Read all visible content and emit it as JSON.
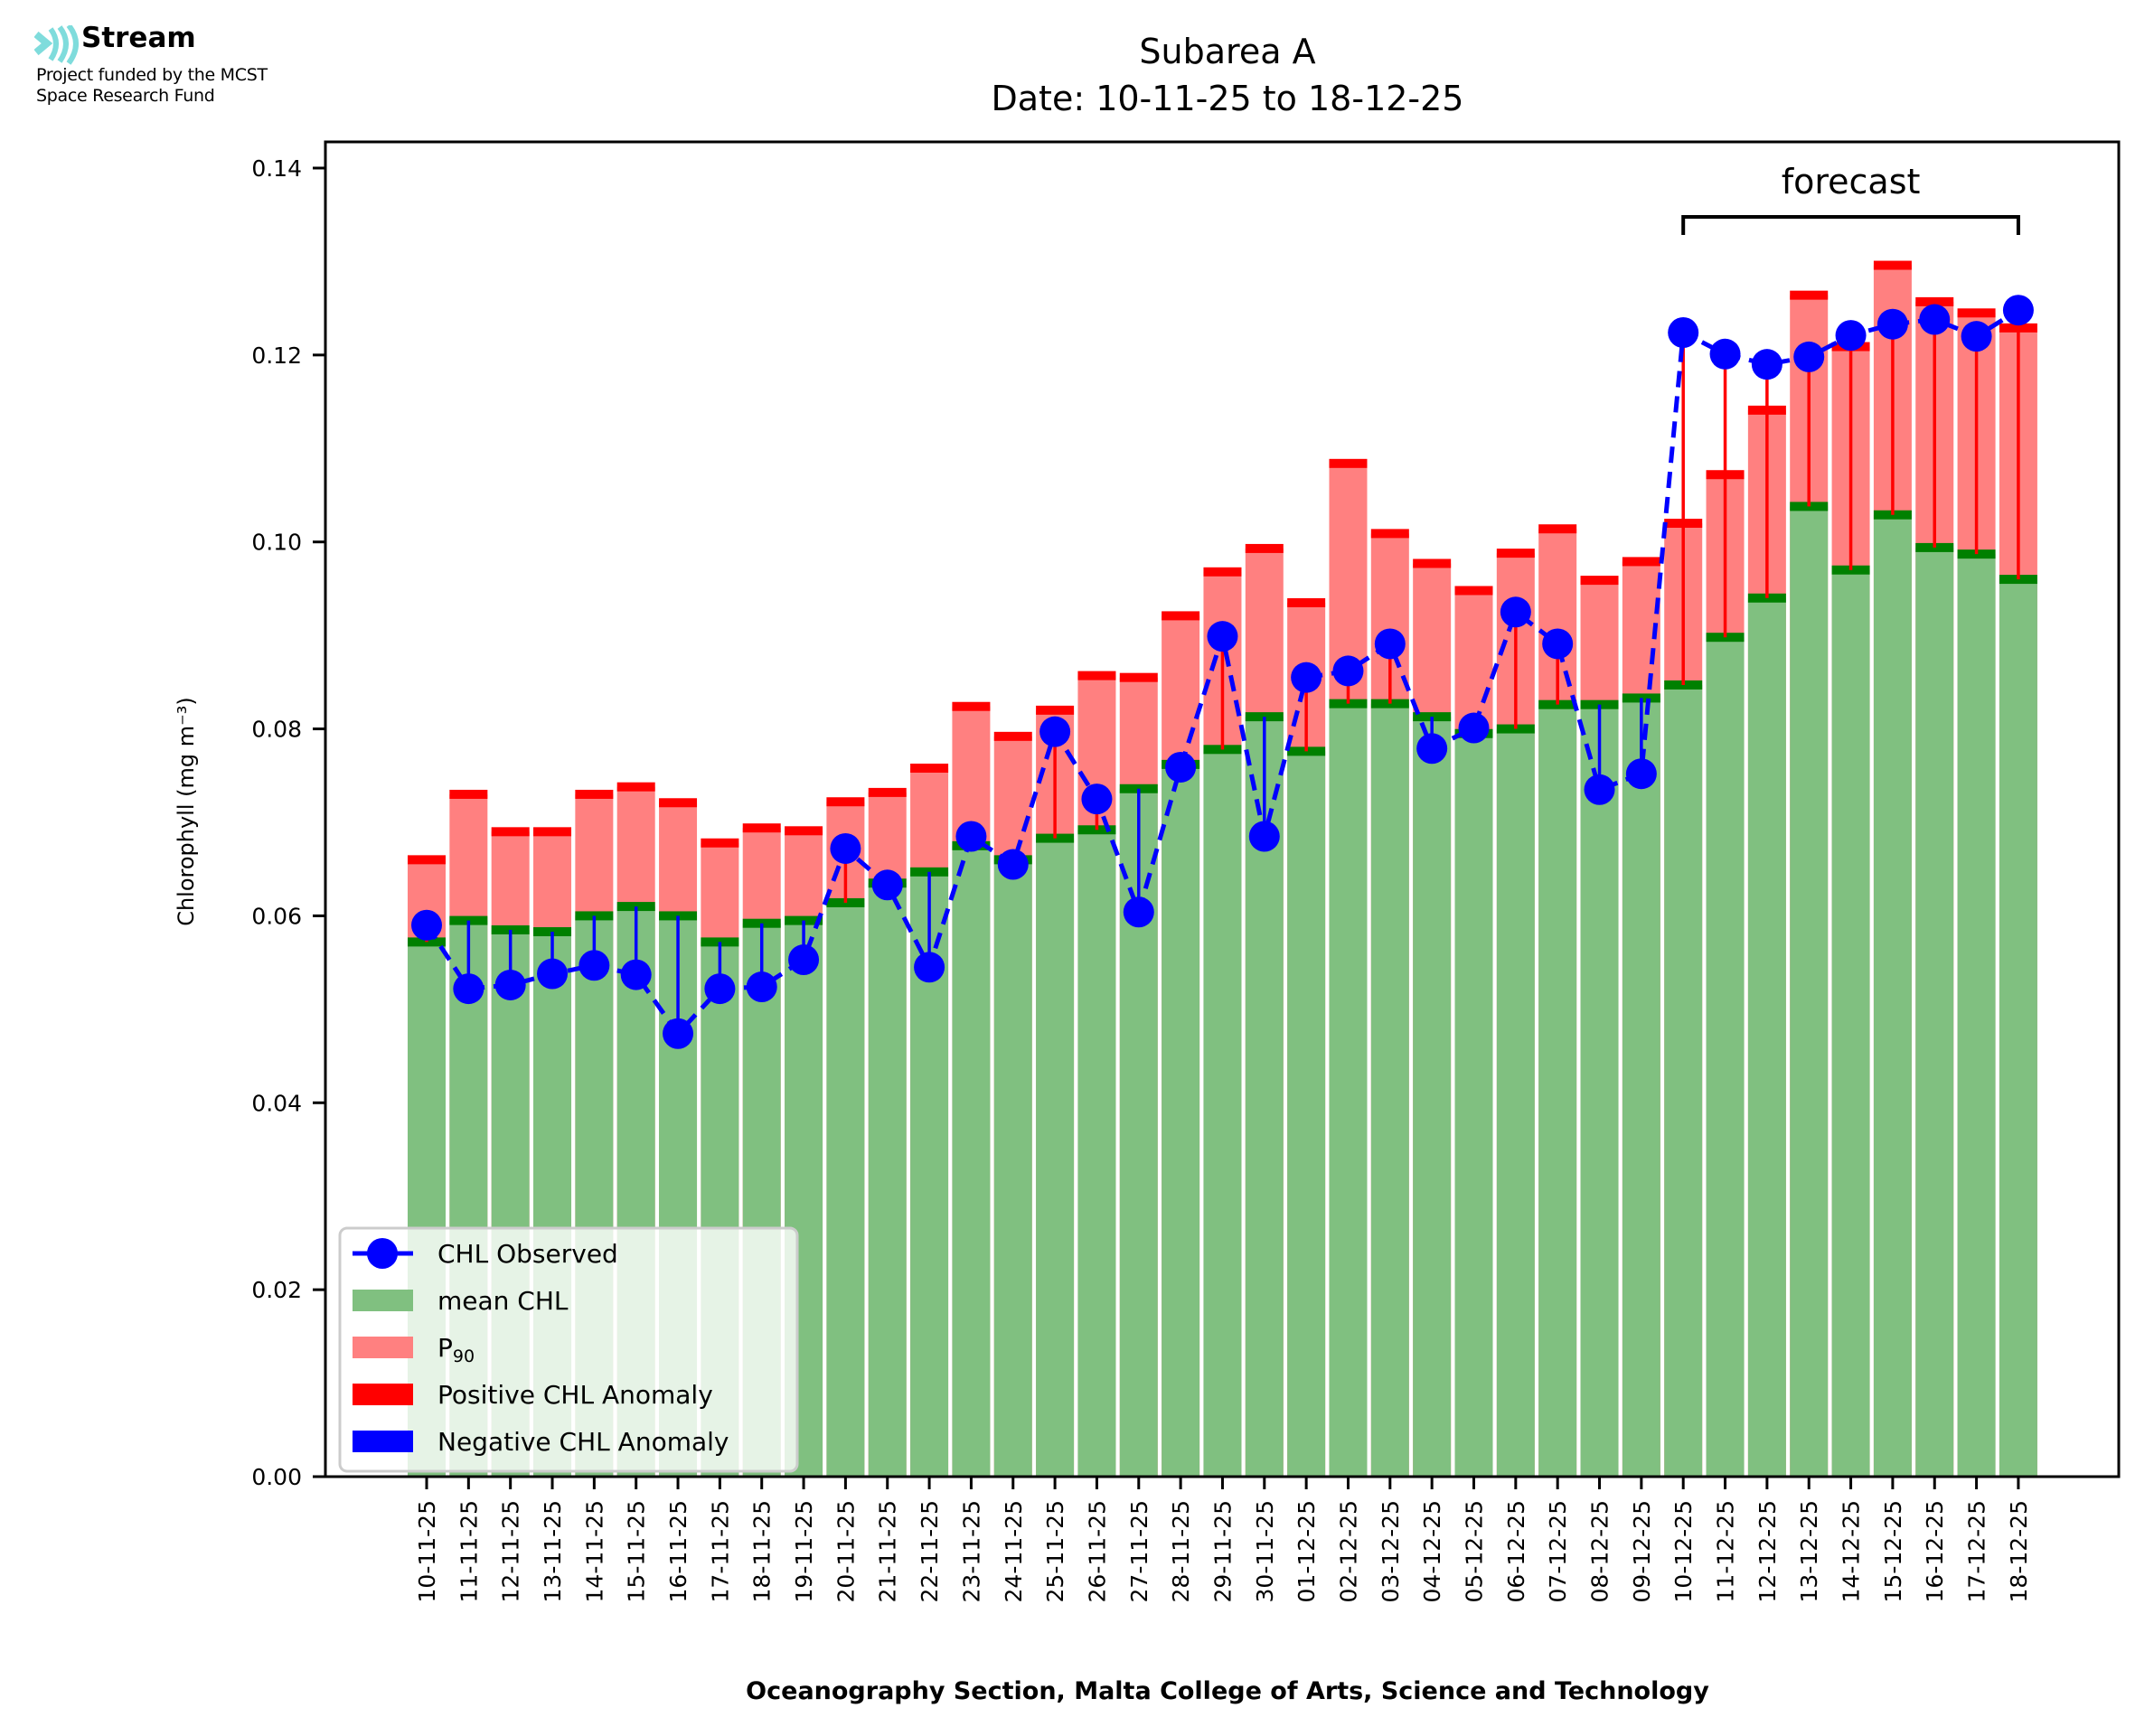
{
  "branding": {
    "name": "Stream",
    "funding_line_1": "Project funded by the MCST",
    "funding_line_2": "Space Research Fund",
    "icon": "stream-waves-icon",
    "icon_color": "#7fdcdc"
  },
  "colors": {
    "mean": "#80c080",
    "mean_edge": "#008000",
    "p90": "#ff8080",
    "positive_anomaly": "#ff0000",
    "negative_anomaly": "#0000ff",
    "observed": "#0000ff"
  },
  "chart_data": {
    "type": "bar",
    "title": "Subarea A",
    "subtitle": "Date: 10-11-25 to 18-12-25",
    "xlabel": "Oceanography Section, Malta College of Arts, Science and Technology",
    "ylabel": "Chlorophyll (mg m⁻³)",
    "ylim": [
      0,
      0.142
    ],
    "yticks": [
      "0.00",
      "0.02",
      "0.04",
      "0.06",
      "0.08",
      "0.10",
      "0.12",
      "0.14"
    ],
    "ytick_values": [
      0,
      0.02,
      0.04,
      0.06,
      0.08,
      0.1,
      0.12,
      0.14
    ],
    "grid": false,
    "legend_position": "lower-left",
    "annotation": {
      "text": "forecast",
      "from": "10-12-25",
      "to": "18-12-25"
    },
    "categories": [
      "10-11-25",
      "11-11-25",
      "12-11-25",
      "13-11-25",
      "14-11-25",
      "15-11-25",
      "16-11-25",
      "17-11-25",
      "18-11-25",
      "19-11-25",
      "20-11-25",
      "21-11-25",
      "22-11-25",
      "23-11-25",
      "24-11-25",
      "25-11-25",
      "26-11-25",
      "27-11-25",
      "28-11-25",
      "29-11-25",
      "30-11-25",
      "01-12-25",
      "02-12-25",
      "03-12-25",
      "04-12-25",
      "05-12-25",
      "06-12-25",
      "07-12-25",
      "08-12-25",
      "09-12-25",
      "10-12-25",
      "11-12-25",
      "12-12-25",
      "13-12-25",
      "14-12-25",
      "15-12-25",
      "16-12-25",
      "17-12-25",
      "18-12-25"
    ],
    "series": [
      {
        "name": "mean CHL",
        "kind": "bar",
        "values": [
          0.0572,
          0.0595,
          0.0585,
          0.0583,
          0.06,
          0.061,
          0.06,
          0.0572,
          0.0592,
          0.0595,
          0.0614,
          0.0635,
          0.0647,
          0.0675,
          0.066,
          0.0683,
          0.0692,
          0.0736,
          0.0762,
          0.0778,
          0.0813,
          0.0776,
          0.0827,
          0.0827,
          0.0813,
          0.0795,
          0.08,
          0.0826,
          0.0826,
          0.0833,
          0.0847,
          0.0898,
          0.094,
          0.1038,
          0.097,
          0.1029,
          0.0994,
          0.0987,
          0.096
        ]
      },
      {
        "name": "P90",
        "kind": "bar",
        "values": [
          0.066,
          0.073,
          0.069,
          0.069,
          0.073,
          0.0738,
          0.0721,
          0.0678,
          0.0694,
          0.0691,
          0.0722,
          0.0732,
          0.0758,
          0.0824,
          0.0792,
          0.082,
          0.0857,
          0.0855,
          0.0921,
          0.0968,
          0.0993,
          0.0935,
          0.1084,
          0.1009,
          0.0977,
          0.0948,
          0.0988,
          0.1014,
          0.0959,
          0.0979,
          0.102,
          0.1072,
          0.1141,
          0.1264,
          0.1209,
          0.1296,
          0.1257,
          0.1245,
          0.1229
        ]
      },
      {
        "name": "CHL Observed",
        "kind": "line",
        "values": [
          0.059,
          0.0522,
          0.0526,
          0.0538,
          0.0547,
          0.0537,
          0.0474,
          0.0522,
          0.0524,
          0.0553,
          0.0672,
          0.0633,
          0.0545,
          0.0685,
          0.0655,
          0.0797,
          0.0725,
          0.0604,
          0.0759,
          0.0899,
          0.0685,
          0.0855,
          0.0862,
          0.0891,
          0.0779,
          0.0801,
          0.0925,
          0.0891,
          0.0735,
          0.0752,
          0.1224,
          0.1201,
          0.119,
          0.1198,
          0.1221,
          0.1233,
          0.1238,
          0.122,
          0.1248
        ]
      }
    ],
    "legend": [
      {
        "label": "CHL Observed",
        "kind": "line-marker",
        "color": "#0000ff"
      },
      {
        "label": "mean CHL",
        "kind": "patch",
        "color": "#80c080"
      },
      {
        "label": "P",
        "sub": "90",
        "kind": "patch",
        "color": "#ff8080"
      },
      {
        "label": "Positive CHL Anomaly",
        "kind": "patch",
        "color": "#ff0000"
      },
      {
        "label": "Negative CHL Anomaly",
        "kind": "patch",
        "color": "#0000ff"
      }
    ]
  }
}
